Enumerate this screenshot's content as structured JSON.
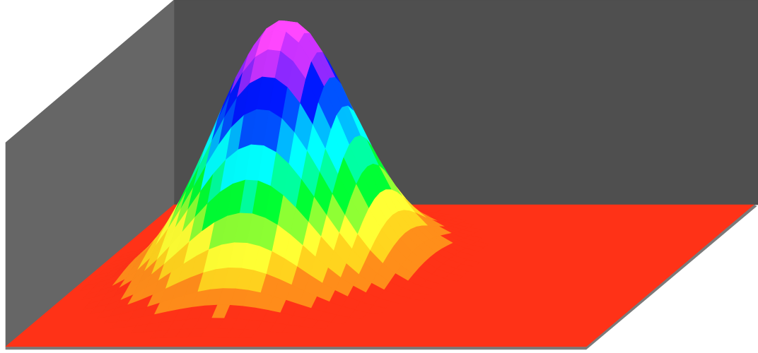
{
  "colors": {
    "background": "#ffffff",
    "back_wall": "#4f4f4f",
    "side_wall": "#666666",
    "floor_edge": "#7a7a7a",
    "floor_base": "#ff3217",
    "palette": [
      "#ff3217",
      "#ff8c1a",
      "#ffd21e",
      "#ffff33",
      "#8cff33",
      "#00ff33",
      "#00ff9e",
      "#00ffff",
      "#00b7ff",
      "#0050ff",
      "#0018ff",
      "#8c28ff",
      "#c832ff",
      "#ff46ff"
    ]
  },
  "chart_data": {
    "type": "surface",
    "title": "",
    "xlabel": "",
    "ylabel": "",
    "zlabel": "",
    "function": "gaussian",
    "peak_value": 1.0,
    "floor_value": 0.0,
    "center": [
      0.0,
      0.0
    ],
    "sigma": 1.0,
    "x_range": [
      -3.0,
      6.0
    ],
    "y_range": [
      -3.0,
      3.0
    ],
    "z_range": [
      0.0,
      1.0
    ],
    "grid_resolution": [
      46,
      30
    ],
    "colormap_levels": 14,
    "axes_visible": false,
    "grid": false,
    "legend": "none"
  }
}
